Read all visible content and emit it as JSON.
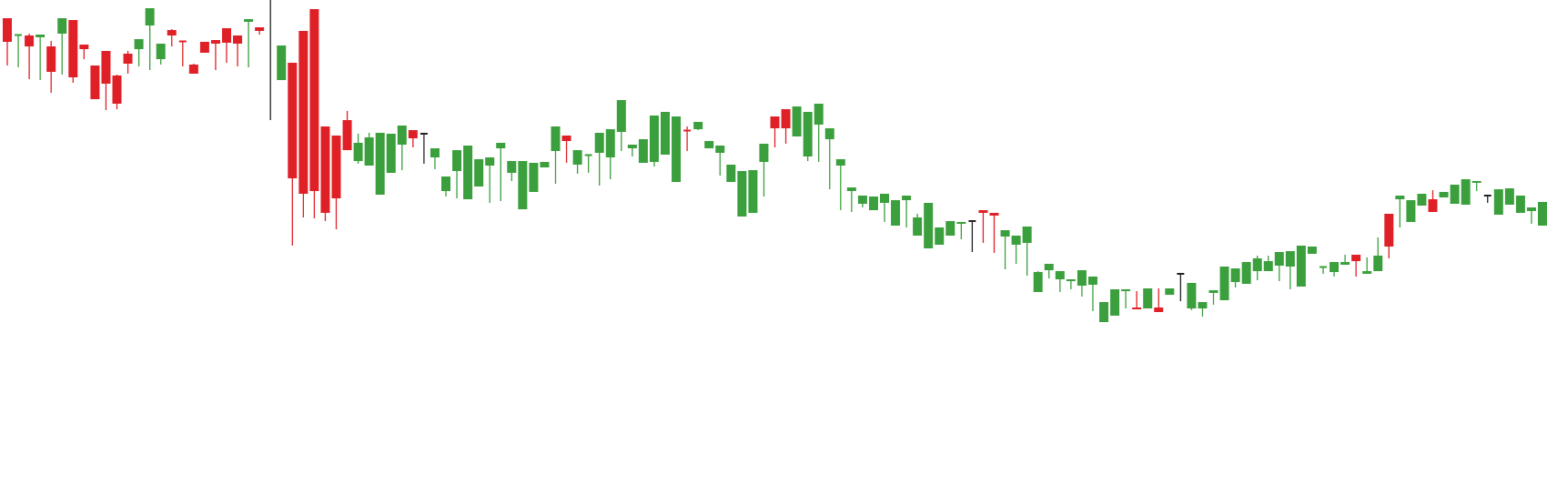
{
  "chart_data": {
    "type": "candlestick",
    "title": "",
    "xlabel": "",
    "ylabel": "",
    "grid": false,
    "legend": "none",
    "ylim": [
      0,
      532
    ],
    "colors": {
      "up": "#3a9f3c",
      "down": "#df2026",
      "neutral": "#222222",
      "background": "#ffffff"
    },
    "candles": [
      [
        512,
        460,
        467,
        486
      ],
      [
        493,
        458,
        466,
        494
      ],
      [
        493,
        445,
        495,
        481
      ],
      [
        491,
        444,
        481,
        494
      ],
      [
        481,
        430,
        487,
        453
      ],
      [
        495,
        450,
        453,
        512
      ],
      [
        510,
        441,
        481,
        447
      ],
      [
        483,
        467,
        471,
        478
      ],
      [
        460,
        437,
        460,
        423
      ],
      [
        476,
        422,
        411,
        440
      ],
      [
        449,
        412,
        450,
        418
      ],
      [
        473,
        451,
        476,
        462
      ],
      [
        478,
        459,
        459,
        489
      ],
      [
        504,
        455,
        485,
        523
      ],
      [
        467,
        480,
        461,
        484
      ],
      [
        499,
        481,
        500,
        493
      ],
      [
        487,
        459,
        472,
        486
      ],
      [
        461,
        460,
        462,
        451
      ],
      [
        486,
        478,
        480,
        474
      ],
      [
        488,
        455,
        456,
        484
      ],
      [
        501,
        463,
        481,
        485
      ],
      [
        493,
        473,
        459,
        484
      ],
      [
        508,
        480,
        458,
        511
      ],
      [
        502,
        494,
        496,
        498
      ],
      [
        533,
        496,
        400,
        533
      ],
      [
        444,
        475,
        461,
        482
      ],
      [
        463,
        302,
        262,
        336
      ],
      [
        498,
        343,
        293,
        319
      ],
      [
        522,
        359,
        292,
        322
      ],
      [
        393,
        309,
        289,
        298
      ],
      [
        383,
        324,
        280,
        314
      ],
      [
        400,
        410,
        409,
        367
      ],
      [
        355,
        385,
        352,
        375
      ],
      [
        350,
        386,
        367,
        381
      ],
      [
        318,
        371,
        318,
        386
      ],
      [
        342,
        376,
        358,
        385
      ],
      [
        373,
        347,
        345,
        394
      ],
      [
        389,
        372,
        370,
        380
      ],
      [
        385,
        363,
        352,
        385
      ],
      [
        359,
        346,
        354,
        369
      ],
      [
        322,
        325,
        316,
        338
      ],
      [
        344,
        329,
        314,
        367
      ],
      [
        313,
        352,
        339,
        372
      ],
      [
        327,
        352,
        337,
        357
      ],
      [
        350,
        353,
        309,
        359
      ],
      [
        369,
        336,
        311,
        375
      ],
      [
        342,
        333,
        342,
        355
      ],
      [
        302,
        333,
        312,
        355
      ],
      [
        321,
        340,
        346,
        353
      ],
      [
        348,
        352,
        349,
        354
      ],
      [
        366,
        335,
        330,
        393
      ],
      [
        383,
        370,
        353,
        377
      ],
      [
        351,
        344,
        341,
        367
      ],
      [
        361,
        348,
        342,
        362
      ],
      [
        364,
        339,
        328,
        386
      ],
      [
        359,
        349,
        335,
        390
      ],
      [
        387,
        367,
        366,
        422
      ],
      [
        369,
        362,
        360,
        373
      ],
      [
        353,
        372,
        362,
        379
      ],
      [
        354,
        380,
        349,
        405
      ],
      [
        362,
        373,
        364,
        409
      ],
      [
        332,
        379,
        375,
        404
      ],
      [
        389,
        393,
        366,
        388
      ],
      [
        390,
        393,
        389,
        398
      ],
      [
        369,
        370,
        369,
        377
      ],
      [
        364,
        347,
        339,
        372
      ],
      [
        332,
        337,
        339,
        351
      ],
      [
        294,
        322,
        301,
        344
      ],
      [
        298,
        332,
        334,
        345
      ],
      [
        354,
        321,
        316,
        374
      ],
      [
        404,
        378,
        370,
        391
      ],
      [
        412,
        377,
        374,
        391
      ],
      [
        382,
        399,
        395,
        415
      ],
      [
        360,
        373,
        355,
        409
      ],
      [
        395,
        354,
        361,
        418
      ],
      [
        379,
        346,
        324,
        391
      ],
      [
        350,
        332,
        301,
        357
      ],
      [
        322,
        299,
        308,
        326
      ],
      [
        308,
        304,
        315,
        317
      ],
      [
        301,
        307,
        301,
        316
      ],
      [
        309,
        288,
        288,
        319
      ],
      [
        284,
        295,
        291,
        312
      ],
      [
        312,
        288,
        282,
        317
      ],
      [
        273,
        297,
        295,
        293
      ],
      [
        259,
        282,
        284,
        309
      ],
      [
        263,
        268,
        272,
        282
      ],
      [
        273,
        283,
        289,
        289
      ],
      [
        286,
        269,
        276,
        288
      ],
      [
        289,
        255,
        259,
        289
      ],
      [
        301,
        265,
        287,
        298
      ],
      [
        298,
        257,
        254,
        295
      ],
      [
        272,
        236,
        245,
        279
      ],
      [
        263,
        245,
        242,
        273
      ],
      [
        265,
        230,
        229,
        283
      ],
      [
        211,
        234,
        229,
        233
      ],
      [
        235,
        226,
        227,
        242
      ],
      [
        225,
        230,
        211,
        234
      ],
      [
        223,
        217,
        214,
        225
      ],
      [
        218,
        206,
        206,
        235
      ],
      [
        219,
        190,
        195,
        228
      ],
      [
        178,
        190,
        185,
        200
      ],
      [
        185,
        201,
        187,
        214
      ],
      [
        212,
        208,
        193,
        214
      ],
      [
        194,
        202,
        212,
        192
      ],
      [
        193,
        209,
        204,
        215
      ],
      [
        194,
        209,
        215,
        189
      ],
      [
        208,
        215,
        211,
        215
      ],
      [
        231,
        201,
        206,
        231
      ],
      [
        193,
        207,
        191,
        221
      ],
      [
        193,
        184,
        192,
        200
      ],
      [
        210,
        209,
        197,
        213
      ],
      [
        202,
        236,
        214,
        239
      ],
      [
        222,
        231,
        216,
        237
      ],
      [
        220,
        239,
        234,
        244
      ],
      [
        234,
        251,
        224,
        248
      ],
      [
        234,
        247,
        251,
        245
      ],
      [
        240,
        248,
        223,
        255
      ],
      [
        239,
        255,
        214,
        256
      ],
      [
        217,
        255,
        251,
        262
      ],
      [
        253,
        259,
        260,
        261
      ],
      [
        238,
        231,
        233,
        239
      ],
      [
        233,
        236,
        228,
        244
      ],
      [
        241,
        252,
        246,
        244
      ],
      [
        252,
        250,
        228,
        245
      ],
      [
        231,
        249,
        245,
        234
      ],
      [
        234,
        271,
        248,
        251
      ],
      [
        297,
        248,
        288,
        261
      ],
      [
        313,
        288,
        282,
        317
      ],
      [
        288,
        304,
        294,
        312
      ],
      [
        306,
        315,
        312,
        319
      ],
      [
        313,
        323,
        314,
        299
      ],
      [
        315,
        315,
        315,
        321
      ],
      [
        308,
        321,
        314,
        329
      ],
      [
        307,
        330,
        324,
        335
      ],
      [
        331,
        330,
        322,
        333
      ],
      [
        317,
        311,
        309,
        317
      ],
      [
        296,
        317,
        307,
        324
      ],
      [
        307,
        320,
        311,
        325
      ],
      [
        298,
        309,
        303,
        317
      ],
      [
        300,
        292,
        286,
        304
      ],
      [
        284,
        303,
        296,
        310
      ],
      [
        286,
        291,
        290,
        299
      ],
      [
        284,
        304,
        303,
        309
      ],
      [
        310,
        306,
        301,
        300
      ],
      [
        298,
        315,
        321,
        308
      ],
      [
        298,
        313,
        309,
        303
      ],
      [
        297,
        306,
        301,
        311
      ],
      [
        293,
        309,
        304,
        298
      ],
      [
        290,
        315,
        301,
        294
      ],
      [
        282,
        324,
        315,
        287
      ],
      [
        290,
        319,
        330,
        286
      ]
    ]
  }
}
